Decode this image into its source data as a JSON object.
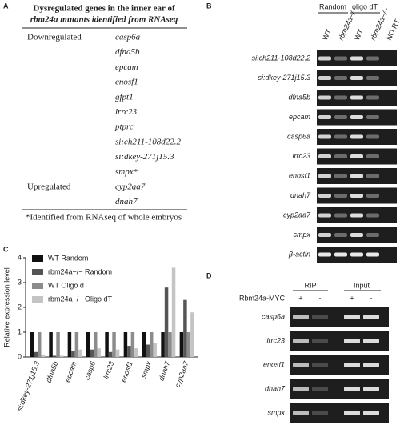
{
  "panel_a": {
    "label": "A",
    "title_line1": "Dysregulated genes in the inner ear of",
    "title_line2": "rbm24a mutants identified from RNAseq",
    "groups": [
      {
        "name": "Downregulated",
        "genes": [
          "casp6a",
          "dfna5b",
          "epcam",
          "enosf1",
          "gfpt1",
          "lrrc23",
          "ptprc",
          "si:ch211-108d22.2",
          "si:dkey-271j15.3",
          "smpx*"
        ]
      },
      {
        "name": "Upregulated",
        "genes": [
          "cyp2aa7",
          "dnah7"
        ]
      }
    ],
    "footnote": "*Identified from RNAseq of whole embryos"
  },
  "panel_b": {
    "label": "B",
    "headers": [
      "Random",
      "oligo dT"
    ],
    "lanes": [
      "WT",
      "rbm24a−/−",
      "WT",
      "rbm24a−/−",
      "NO RT"
    ],
    "genes": [
      "si:ch211-108d22.2",
      "si:dkey-271j15.3",
      "dfna5b",
      "epcam",
      "casp6a",
      "lrrc23",
      "enosf1",
      "dnah7",
      "cyp2aa7",
      "smpx",
      "β-actin"
    ]
  },
  "chart_data": {
    "type": "bar",
    "label": "C",
    "ylabel": "Relative expression level",
    "categories": [
      "si:dkey-271j15.3",
      "dfna5b",
      "epcam",
      "casp6",
      "lrrc23",
      "enosf1",
      "smpx",
      "dnah7",
      "cyp2aa7"
    ],
    "series": [
      {
        "name": "WT Random",
        "color": "#111111",
        "values": [
          1,
          1,
          1,
          1,
          1,
          1,
          1,
          1,
          1
        ]
      },
      {
        "name": "rbm24a−/− Random",
        "color": "#555555",
        "values": [
          0.2,
          0.05,
          0.25,
          0.3,
          0.2,
          0.45,
          0.5,
          2.8,
          2.3
        ]
      },
      {
        "name": "WT Oligo dT",
        "color": "#8c8c8c",
        "values": [
          1,
          1,
          1,
          1,
          1,
          1,
          1,
          1,
          1
        ]
      },
      {
        "name": "rbm24a−/− Oligo dT",
        "color": "#c4c4c4",
        "values": [
          0.1,
          0.05,
          0.3,
          0.35,
          0.3,
          0.35,
          0.55,
          3.6,
          1.8
        ]
      }
    ],
    "ylim": [
      0,
      4
    ],
    "yticks": [
      0,
      1,
      2,
      3,
      4
    ]
  },
  "panel_d": {
    "label": "D",
    "headers": [
      "RIP",
      "Input"
    ],
    "row_label": "Rbm24a-MYC",
    "signs": [
      "+",
      "-",
      "+",
      "-"
    ],
    "genes": [
      "casp6a",
      "lrrc23",
      "enosf1",
      "dnah7",
      "smpx"
    ]
  }
}
